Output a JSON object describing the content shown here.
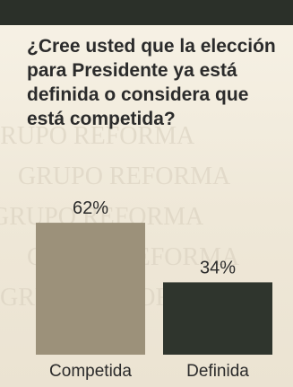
{
  "question": "¿Cree usted que la elección para Presidente ya está definida o considera que está competida?",
  "watermark": "GRUPO REFORMA",
  "colors": {
    "top_bar": "#2b3029",
    "bar_competida": "#9c917a",
    "bar_definida": "#2f352d",
    "text": "#2b2b2b"
  },
  "chart_data": {
    "type": "bar",
    "categories": [
      "Competida",
      "Definida"
    ],
    "values": [
      62,
      34
    ],
    "value_labels": [
      "62%",
      "34%"
    ],
    "title": "¿Cree usted que la elección para Presidente ya está definida o considera que está competida?",
    "xlabel": "",
    "ylabel": "",
    "ylim": [
      0,
      100
    ],
    "grid": false,
    "legend": "none"
  }
}
